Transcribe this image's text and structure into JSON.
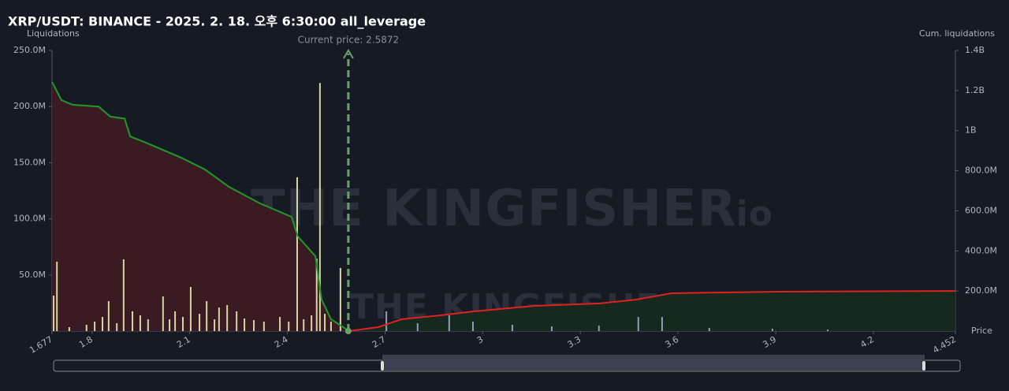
{
  "chart_data": {
    "type": "bar",
    "title": "XRP/USDT: BINANCE - 2025. 2. 18. 오후 6:30:00 all_leverage",
    "y_label": "Liquidations",
    "y2_label": "Cum. liquidations",
    "x_label": "Price",
    "current_price_label": "Current price: 2.5872",
    "current_price": 2.5872,
    "current_price_color": "#6f9f6f",
    "watermark": "THE KINGFISHER",
    "watermark_suffix": ".io",
    "xlim": [
      1.677,
      4.452
    ],
    "xticks": [
      1.677,
      1.8,
      2.1,
      2.4,
      2.7,
      3,
      3.3,
      3.6,
      3.9,
      4.2,
      4.452
    ],
    "ylim": [
      0,
      250000000
    ],
    "yticks": [
      {
        "value": 50000000,
        "label": "50.0M"
      },
      {
        "value": 100000000,
        "label": "100.0M"
      },
      {
        "value": 150000000,
        "label": "150.0M"
      },
      {
        "value": 200000000,
        "label": "200.0M"
      },
      {
        "value": 250000000,
        "label": "250.0M"
      }
    ],
    "y2lim": [
      0,
      1400000000
    ],
    "y2ticks": [
      {
        "value": 200000000,
        "label": "200.0M"
      },
      {
        "value": 400000000,
        "label": "400.0M"
      },
      {
        "value": 600000000,
        "label": "600.0M"
      },
      {
        "value": 800000000,
        "label": "800.0M"
      },
      {
        "value": 1000000000,
        "label": "1B"
      },
      {
        "value": 1200000000,
        "label": "1.2B"
      },
      {
        "value": 1400000000,
        "label": "1.4B"
      }
    ],
    "series": [
      {
        "type": "bar",
        "color": "#d8d6a0",
        "x": [
          1.682,
          1.692,
          1.73,
          1.783,
          1.808,
          1.832,
          1.851,
          1.876,
          1.897,
          1.924,
          1.948,
          1.972,
          2.018,
          2.038,
          2.055,
          2.079,
          2.103,
          2.13,
          2.152,
          2.176,
          2.19,
          2.215,
          2.244,
          2.268,
          2.297,
          2.328,
          2.377,
          2.404,
          2.43,
          2.45,
          2.474,
          2.49,
          2.5,
          2.515,
          2.534,
          2.563
        ],
        "values": [
          31600000,
          61800000,
          3500000,
          5600000,
          8400000,
          12600000,
          26700000,
          7000000,
          63900000,
          17600000,
          14000000,
          10500000,
          30900000,
          10500000,
          17600000,
          12600000,
          39300000,
          15400000,
          26700000,
          10500000,
          21000000,
          23200000,
          17600000,
          11200000,
          9800000,
          8400000,
          12600000,
          8400000,
          137000000,
          10500000,
          14000000,
          64600000,
          221000000,
          15400000,
          8400000,
          56200000
        ]
      },
      {
        "type": "bar",
        "color": "#8f9fb8",
        "x": [
          2.704,
          2.8,
          2.897,
          2.97,
          3.091,
          3.212,
          3.357,
          3.478,
          3.551,
          3.696,
          3.89,
          4.06
        ],
        "values": [
          17600000,
          7000000,
          14000000,
          8400000,
          5600000,
          4200000,
          4900000,
          12600000,
          12600000,
          2800000,
          2100000,
          1400000
        ]
      },
      {
        "type": "line",
        "axis": "y2",
        "color": "#1f9a2a",
        "area_color": "#3a1b24",
        "x": [
          1.677,
          1.706,
          1.74,
          1.82,
          1.856,
          1.9,
          1.917,
          1.965,
          2.074,
          2.147,
          2.22,
          2.316,
          2.413,
          2.432,
          2.486,
          2.505,
          2.534,
          2.59
        ],
        "values": [
          1243000000,
          1152000000,
          1129000000,
          1120000000,
          1070000000,
          1060000000,
          971000000,
          940000000,
          865000000,
          806000000,
          720000000,
          637000000,
          570000000,
          472000000,
          374000000,
          157000000,
          59000000,
          0
        ]
      },
      {
        "type": "line",
        "axis": "y2",
        "color": "#e0221f",
        "area_color": "#15291f",
        "x": [
          2.59,
          2.68,
          2.75,
          2.873,
          2.97,
          3.16,
          3.36,
          3.47,
          3.54,
          3.58,
          3.94,
          4.452
        ],
        "values": [
          0,
          20000000,
          59000000,
          79000000,
          98000000,
          126000000,
          138000000,
          157000000,
          177000000,
          189000000,
          197000000,
          200000000
        ]
      }
    ]
  }
}
